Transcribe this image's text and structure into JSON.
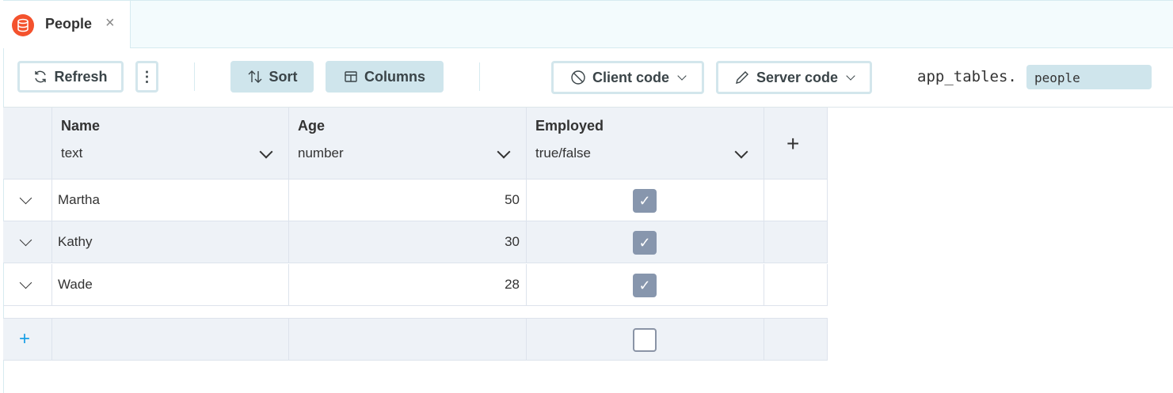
{
  "tab": {
    "title": "People",
    "icon": "database-icon",
    "close": "×"
  },
  "toolbar": {
    "refresh": "Refresh",
    "more": "⋮",
    "sort": "Sort",
    "columns": "Columns",
    "client_code": "Client code",
    "server_code": "Server code",
    "code_prefix": "app_tables.",
    "table_name": "people"
  },
  "columns": [
    {
      "name": "Name",
      "type": "text"
    },
    {
      "name": "Age",
      "type": "number"
    },
    {
      "name": "Employed",
      "type": "true/false"
    }
  ],
  "rows": [
    {
      "name": "Martha",
      "age": "50",
      "employed": true
    },
    {
      "name": "Kathy",
      "age": "30",
      "employed": true
    },
    {
      "name": "Wade",
      "age": "28",
      "employed": true
    }
  ],
  "colors": {
    "accent": "#f4522d",
    "button_fill": "#cfe5ec",
    "add_row": "#1aa0e6"
  }
}
